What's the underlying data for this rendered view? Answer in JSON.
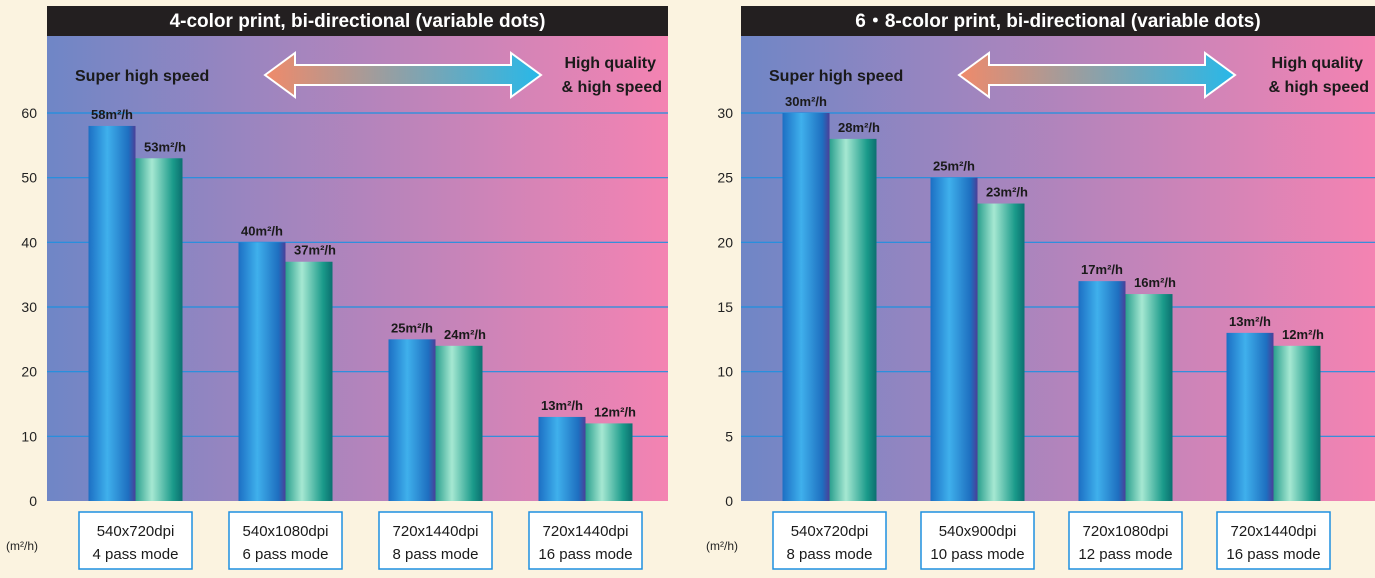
{
  "unit_label": "(m²/h)",
  "arrow": {
    "left_label": "Super high speed",
    "right_label_line1": "High quality",
    "right_label_line2": "& high speed"
  },
  "colors": {
    "page_background": "#fbf3e0",
    "title_bar": "#231f20",
    "panel_gradient_left": "#6f86c6",
    "panel_gradient_right": "#f483b2",
    "grid_line": "#1e90e0",
    "bar_series_a": "#1e7fd0",
    "bar_series_b": "#3fb9a2",
    "arrow_left": "#f08a6a",
    "arrow_right": "#28b8e8",
    "category_box_border": "#1e90e0"
  },
  "chart_data": [
    {
      "type": "bar",
      "title": "4-color print, bi-directional (variable dots)",
      "ylim": [
        0,
        60
      ],
      "yticks": [
        0,
        10,
        20,
        30,
        40,
        50,
        60
      ],
      "categories": [
        [
          "540x720dpi",
          "4 pass mode"
        ],
        [
          "540x1080dpi",
          "6 pass mode"
        ],
        [
          "720x1440dpi",
          "8 pass mode"
        ],
        [
          "720x1440dpi",
          "16 pass mode"
        ]
      ],
      "series": [
        {
          "values": [
            58,
            40,
            25,
            13
          ],
          "labels": [
            "58m²/h",
            "40m²/h",
            "25m²/h",
            "13m²/h"
          ]
        },
        {
          "values": [
            53,
            37,
            24,
            12
          ],
          "labels": [
            "53m²/h",
            "37m²/h",
            "24m²/h",
            "12m²/h"
          ]
        }
      ],
      "grid": true
    },
    {
      "type": "bar",
      "title": "6・8-color print, bi-directional (variable dots)",
      "ylim": [
        0,
        30
      ],
      "yticks": [
        0,
        5,
        10,
        15,
        20,
        25,
        30
      ],
      "categories": [
        [
          "540x720dpi",
          "8 pass mode"
        ],
        [
          "540x900dpi",
          "10 pass mode"
        ],
        [
          "720x1080dpi",
          "12 pass mode"
        ],
        [
          "720x1440dpi",
          "16 pass mode"
        ]
      ],
      "series": [
        {
          "values": [
            30,
            25,
            17,
            13
          ],
          "labels": [
            "30m²/h",
            "25m²/h",
            "17m²/h",
            "13m²/h"
          ]
        },
        {
          "values": [
            28,
            23,
            16,
            12
          ],
          "labels": [
            "28m²/h",
            "23m²/h",
            "16m²/h",
            "12m²/h"
          ]
        }
      ],
      "grid": true
    }
  ]
}
